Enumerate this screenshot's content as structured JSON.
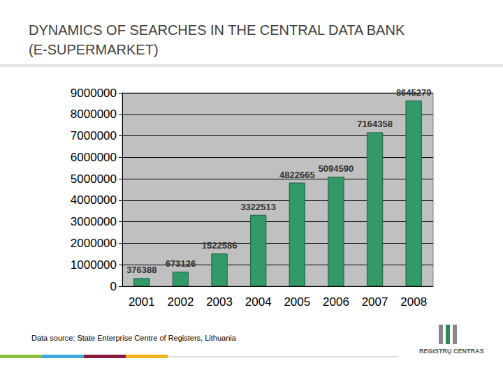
{
  "chart_data": {
    "type": "bar",
    "title": "DYNAMICS OF SEARCHES IN THE CENTRAL DATA BANK (E-SUPERMARKET)",
    "categories": [
      "2001",
      "2002",
      "2003",
      "2004",
      "2005",
      "2006",
      "2007",
      "2008"
    ],
    "values": [
      376388,
      673126,
      1522586,
      3322513,
      4822665,
      5094590,
      7164358,
      8645279
    ],
    "color": "#339966",
    "ylim": [
      0,
      9000000
    ],
    "yticks": [
      0,
      1000000,
      2000000,
      3000000,
      4000000,
      5000000,
      6000000,
      7000000,
      8000000,
      9000000
    ],
    "grid": true,
    "data_labels": true,
    "annotations": [
      "Data source: State Enterprise Centre of Registers, Lithuania",
      "REGISTRŲ CENTRAS"
    ]
  }
}
